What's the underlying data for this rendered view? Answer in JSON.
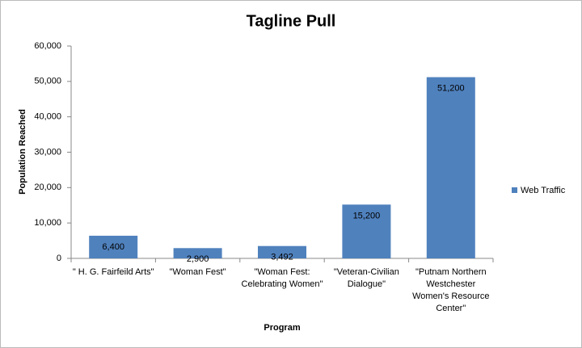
{
  "chart_data": {
    "type": "bar",
    "title": "Tagline Pull",
    "x_label": "Program",
    "y_label": "Population Reached",
    "categories": [
      "\" H. G. Fairfeild Arts\"",
      "\"Woman Fest\"",
      "\"Woman Fest: Celebrating Women\"",
      "\"Veteran-Civilian Dialogue\"",
      "\"Putnam Northern Westchester Women's Resource Center\""
    ],
    "series": [
      {
        "name": "Web Traffic",
        "color": "#4f81bd",
        "values": [
          6400,
          2900,
          3492,
          15200,
          51200
        ],
        "value_labels": [
          "6,400",
          "2,900",
          "3,492",
          "15,200",
          "51,200"
        ]
      }
    ],
    "ylim": [
      0,
      60000
    ],
    "yticks": [
      0,
      {
        "value": 10000,
        "label": "10,000"
      },
      {
        "value": 20000,
        "label": "20,000"
      },
      {
        "value": 30000,
        "label": "30,000"
      },
      {
        "value": 40000,
        "label": "40,000"
      },
      {
        "value": 50000,
        "label": "50,000"
      },
      {
        "value": 60000,
        "label": "60,000"
      }
    ],
    "grid": false,
    "legend": "right"
  }
}
